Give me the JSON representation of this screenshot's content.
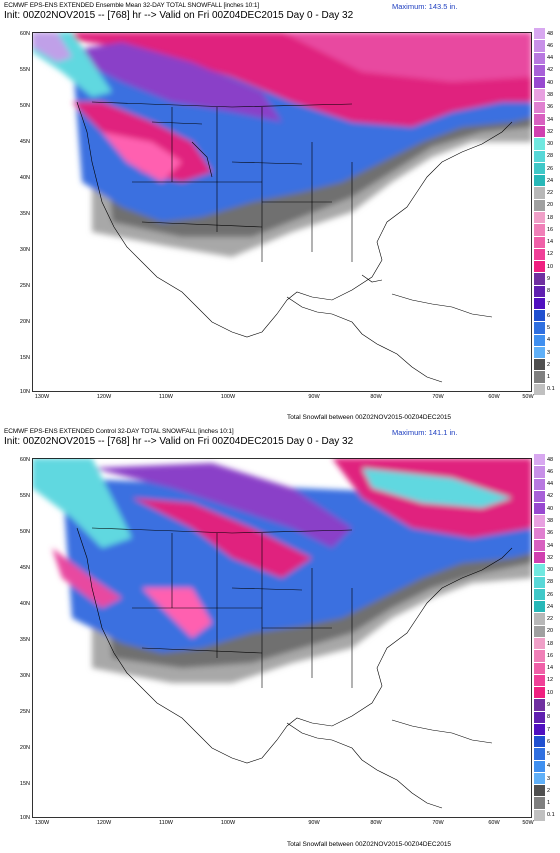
{
  "panels": [
    {
      "title_line1": "ECMWF EPS-ENS EXTENDED Ensemble Mean 32-DAY TOTAL SNOWFALL [inches 10:1]",
      "title_line2": "Init: 00Z02NOV2015 -- [768] hr --> Valid on Fri 00Z04DEC2015  Day 0 - Day 32",
      "maximum": "Maximum: 143.5 in.",
      "caption": "Total Snowfall between 00Z02NOV2015-00Z04DEC2015"
    },
    {
      "title_line1": "ECMWF EPS-ENS EXTENDED Control 32-DAY TOTAL SNOWFALL [inches 10:1]",
      "title_line2": "Init: 00Z02NOV2015 -- [768] hr --> Valid on Fri 00Z04DEC2015  Day 0 - Day 32",
      "maximum": "Maximum: 141.1 in.",
      "caption": "Total Snowfall between 00Z02NOV2015-00Z04DEC2015"
    }
  ],
  "lat_labels": [
    "60N",
    "55N",
    "50N",
    "45N",
    "40N",
    "35N",
    "30N",
    "25N",
    "20N",
    "15N",
    "10N"
  ],
  "lon_labels": [
    "130W",
    "120W",
    "110W",
    "100W",
    "90W",
    "80W",
    "70W",
    "60W",
    "50W"
  ],
  "colorbar": {
    "labels": [
      "48",
      "46",
      "44",
      "42",
      "40",
      "38",
      "36",
      "34",
      "32",
      "30",
      "28",
      "26",
      "24",
      "22",
      "20",
      "18",
      "16",
      "14",
      "12",
      "10",
      "9",
      "8",
      "7",
      "6",
      "5",
      "4",
      "3",
      "2",
      "1",
      "0.1"
    ],
    "colors": [
      "#d8a8f0",
      "#c890e8",
      "#b878e0",
      "#a860d8",
      "#9848d0",
      "#e8a0e0",
      "#e080d0",
      "#d860c0",
      "#d040b0",
      "#70e8e0",
      "#58d8d8",
      "#40c8c8",
      "#28b8b8",
      "#b8b8b8",
      "#a0a0a0",
      "#f0a0c8",
      "#f080b8",
      "#f060a8",
      "#f04098",
      "#f02080",
      "#7030a0",
      "#6020b0",
      "#5010c0",
      "#2050d0",
      "#3070e0",
      "#4090f0",
      "#60b0f8",
      "#505050",
      "#808080",
      "#c0c0c0"
    ]
  }
}
